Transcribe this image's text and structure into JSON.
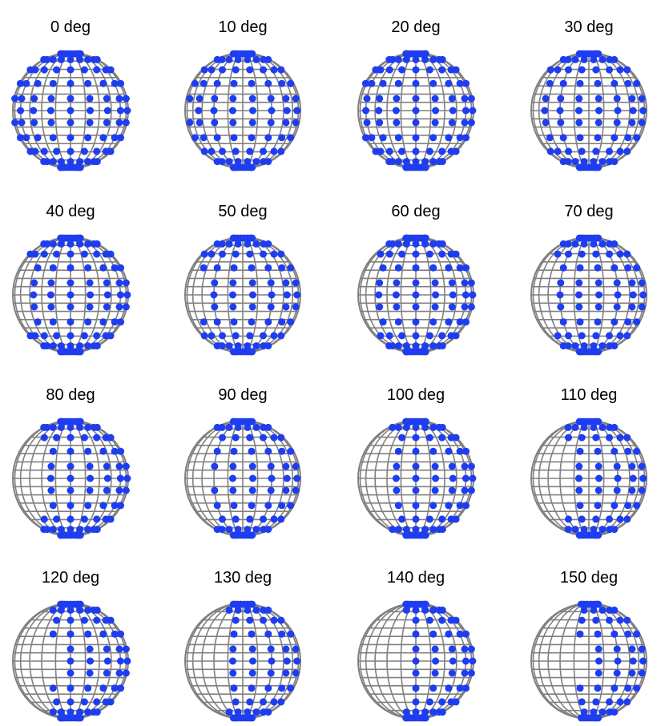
{
  "figure": {
    "colors": {
      "wireframe": "#808080",
      "points": "#1f3df0",
      "background": "#ffffff"
    },
    "panels": [
      {
        "title": "0 deg",
        "rotation_deg": 0
      },
      {
        "title": "10 deg",
        "rotation_deg": 10
      },
      {
        "title": "20 deg",
        "rotation_deg": 20
      },
      {
        "title": "30 deg",
        "rotation_deg": 30
      },
      {
        "title": "40 deg",
        "rotation_deg": 40
      },
      {
        "title": "50 deg",
        "rotation_deg": 50
      },
      {
        "title": "60 deg",
        "rotation_deg": 60
      },
      {
        "title": "70 deg",
        "rotation_deg": 70
      },
      {
        "title": "80 deg",
        "rotation_deg": 80
      },
      {
        "title": "90 deg",
        "rotation_deg": 90
      },
      {
        "title": "100 deg",
        "rotation_deg": 100
      },
      {
        "title": "110 deg",
        "rotation_deg": 110
      },
      {
        "title": "120 deg",
        "rotation_deg": 120
      },
      {
        "title": "130 deg",
        "rotation_deg": 130
      },
      {
        "title": "140 deg",
        "rotation_deg": 140
      },
      {
        "title": "150 deg",
        "rotation_deg": 150
      }
    ]
  }
}
